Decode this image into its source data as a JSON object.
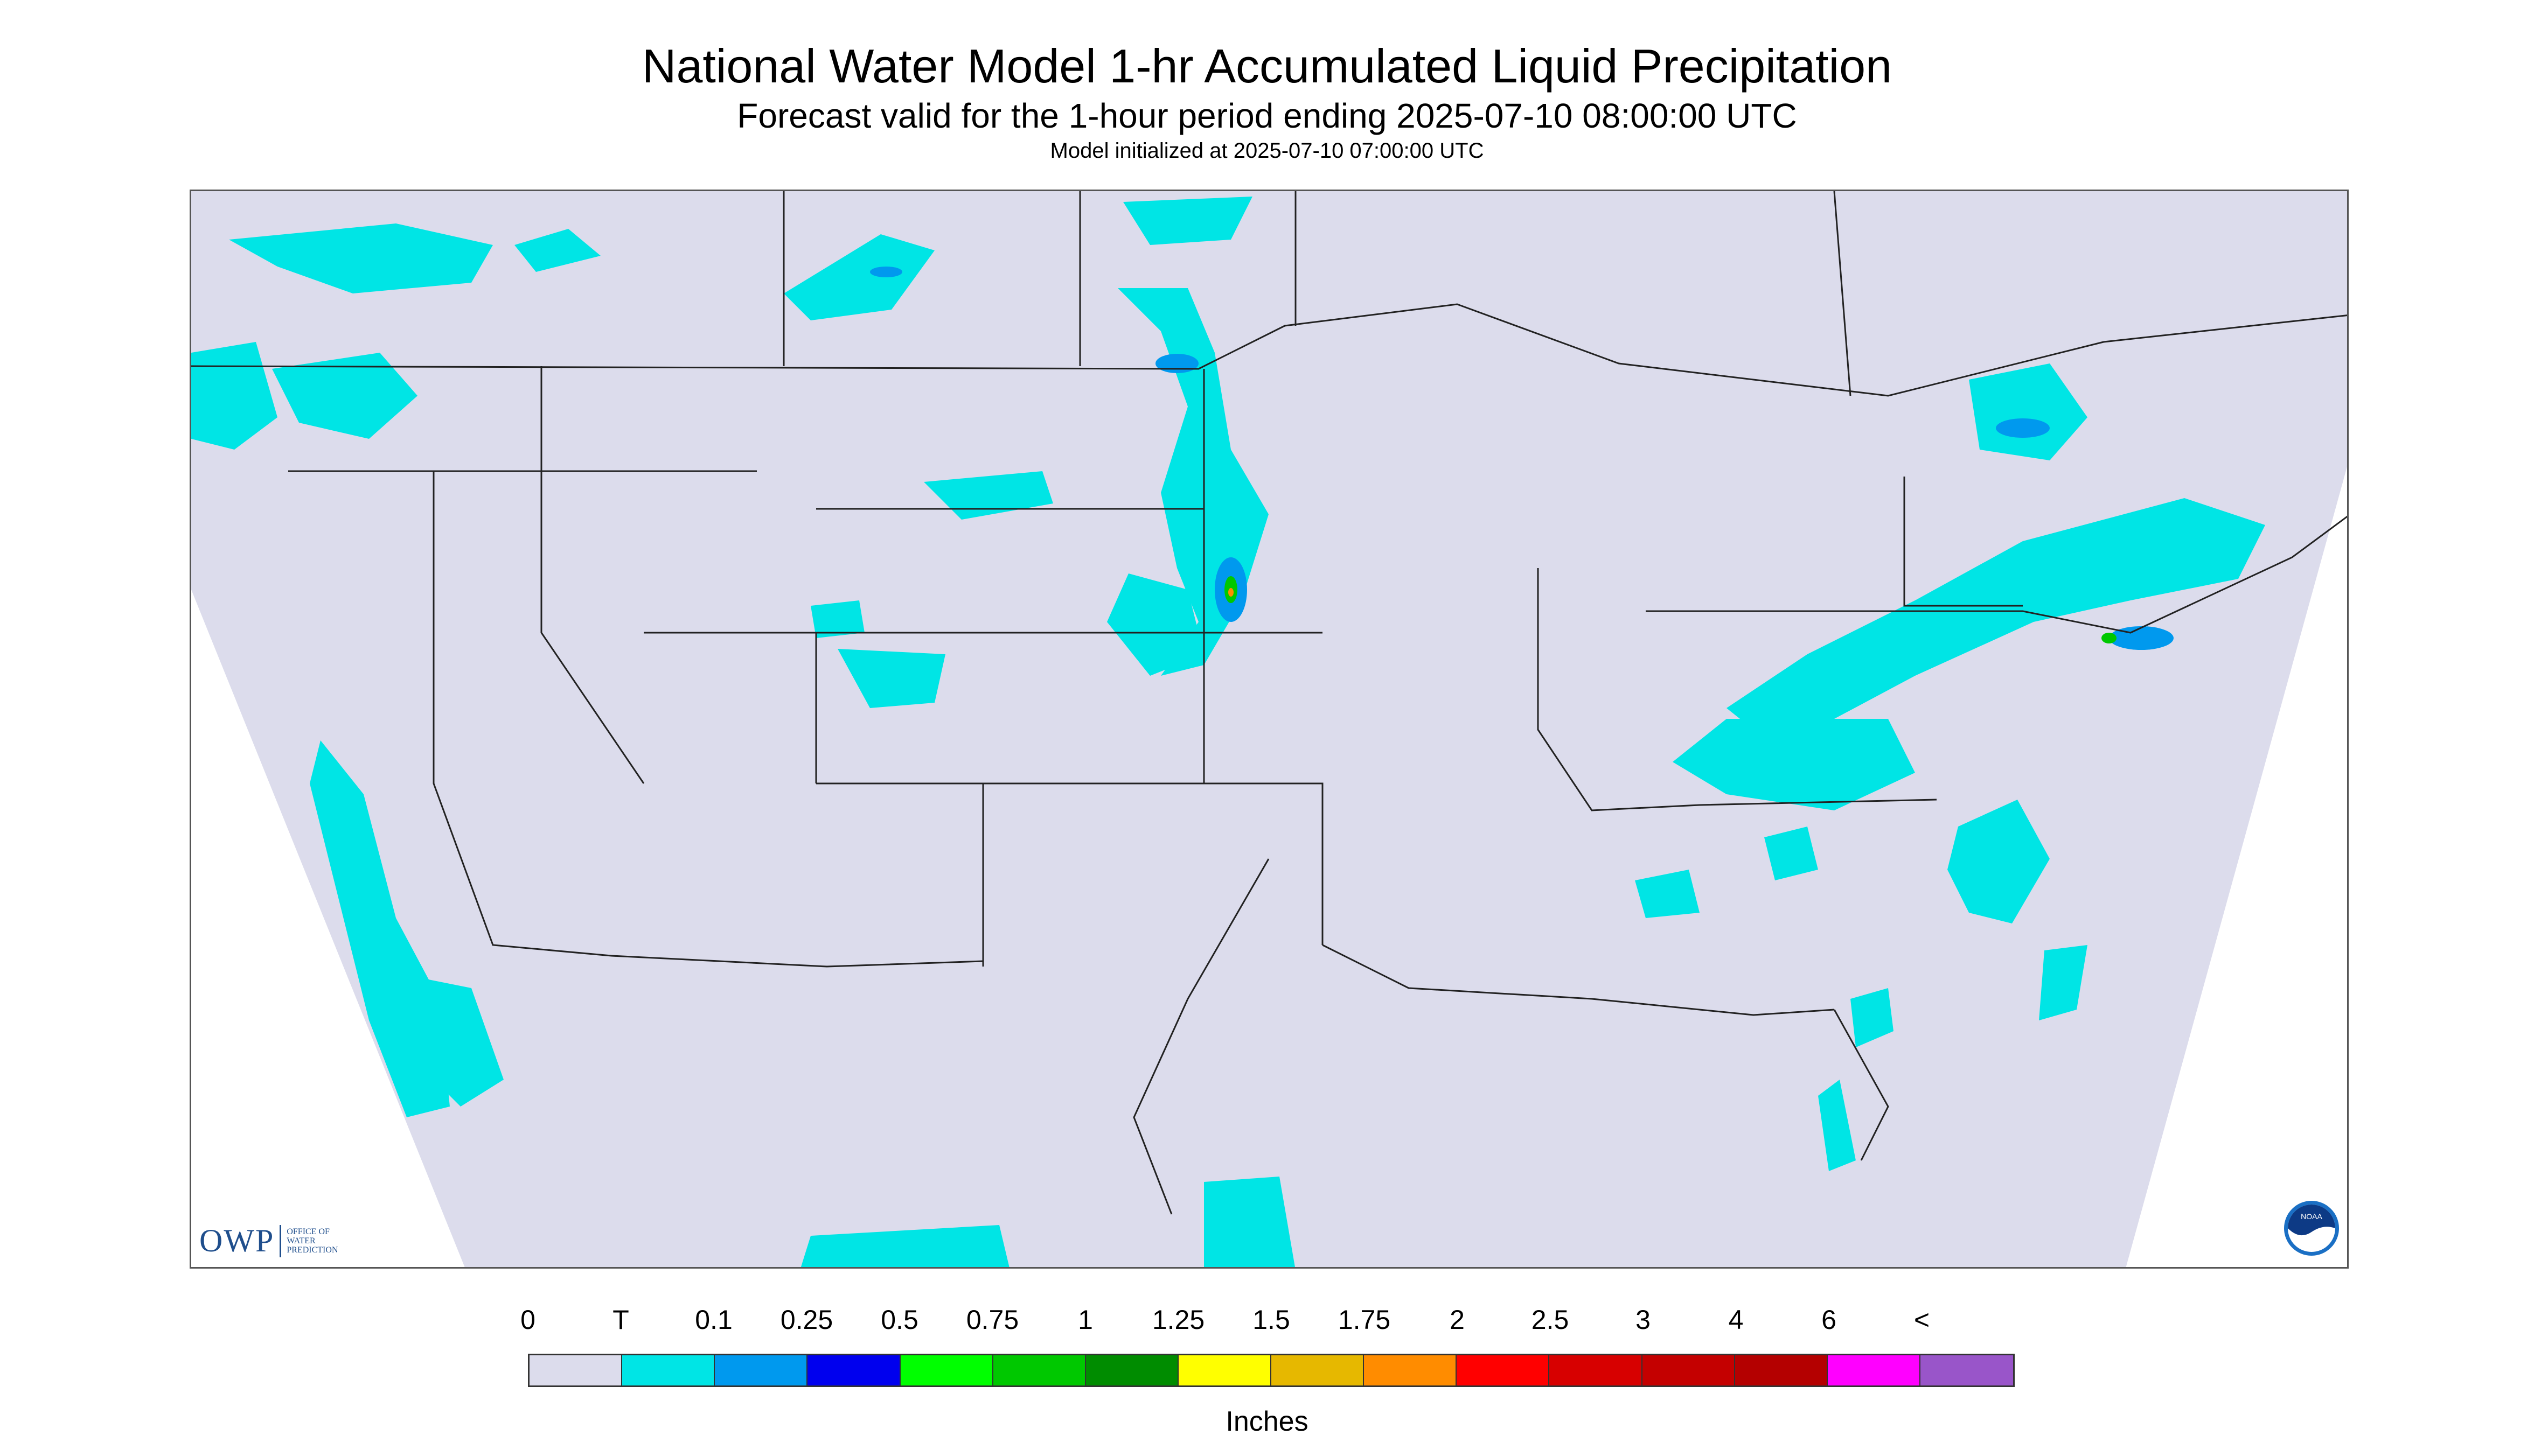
{
  "header": {
    "title": "National Water Model 1-hr Accumulated Liquid Precipitation",
    "subtitle": "Forecast valid for the 1-hour period ending 2025-07-10 08:00:00 UTC",
    "init": "Model initialized at 2025-07-10 07:00:00 UTC"
  },
  "logos": {
    "owp_big": "OWP",
    "owp_small_1": "OFFICE OF",
    "owp_small_2": "WATER",
    "owp_small_3": "PREDICTION",
    "noaa": "NOAA"
  },
  "legend": {
    "units": "Inches",
    "labels": [
      "0",
      "T",
      "0.1",
      "0.25",
      "0.5",
      "0.75",
      "1",
      "1.25",
      "1.5",
      "1.75",
      "2",
      "2.5",
      "3",
      "4",
      "6",
      "<"
    ],
    "colors": [
      "#dcdcec",
      "#00e5e5",
      "#0099ee",
      "#0000ee",
      "#00ff00",
      "#00c800",
      "#008c00",
      "#ffff00",
      "#e6b800",
      "#ff8c00",
      "#ff0000",
      "#d70000",
      "#c40000",
      "#b40000",
      "#ff00ff",
      "#9955c9"
    ]
  },
  "map_colors": {
    "domain": "#dcdcec",
    "outside": "#ffffff",
    "borders": "#222222",
    "trace": "#00e5e5"
  }
}
